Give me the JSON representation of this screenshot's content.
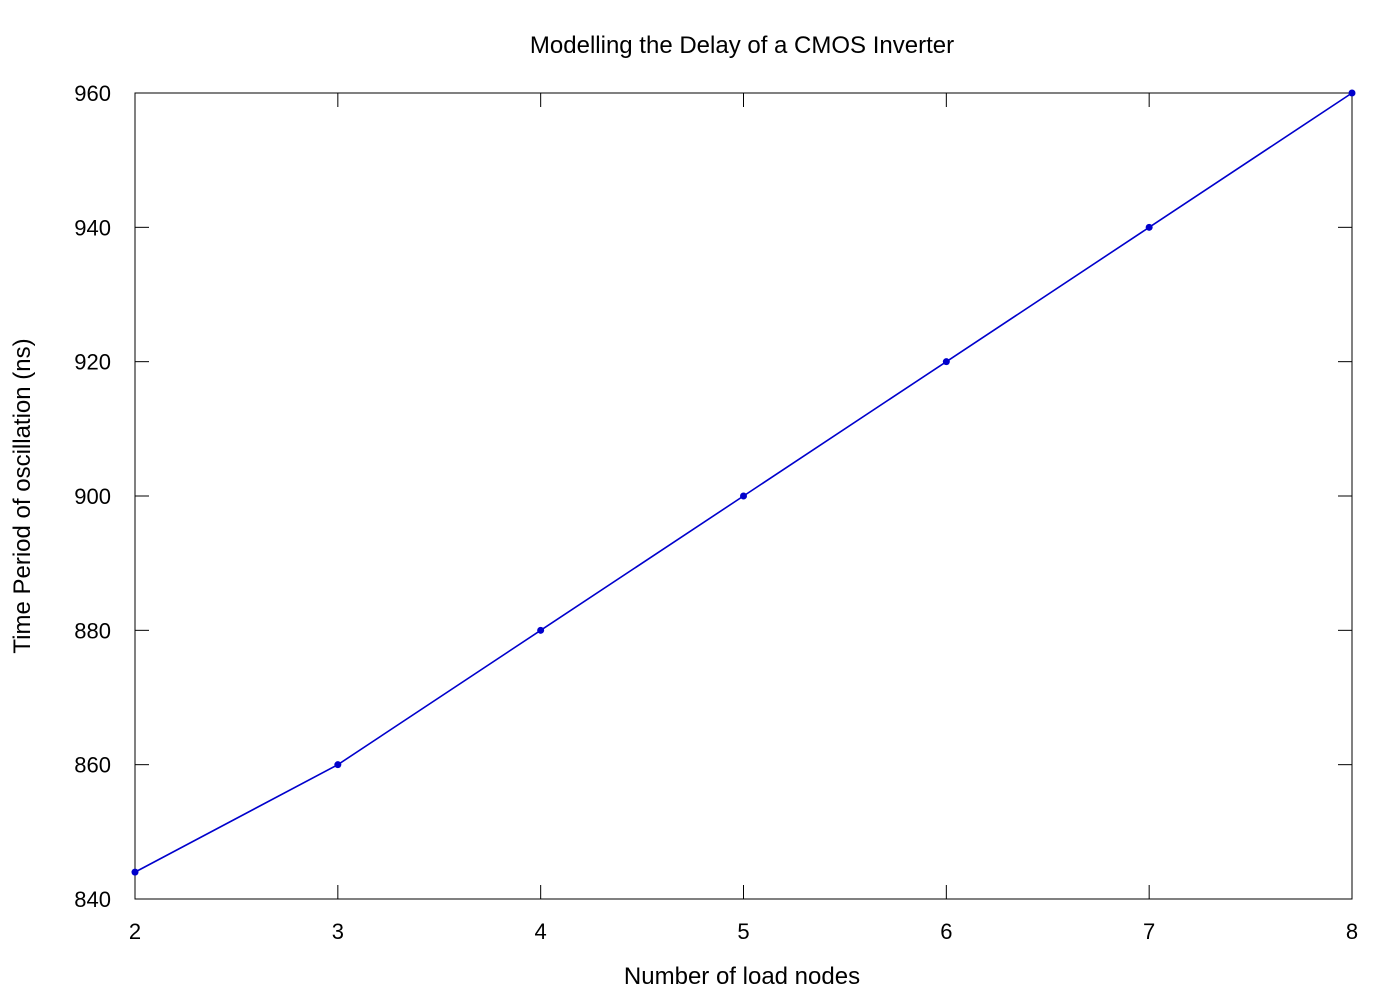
{
  "chart_data": {
    "type": "line",
    "title": "Modelling the Delay of a CMOS Inverter",
    "xlabel": "Number of load nodes",
    "ylabel": "Time Period of oscillation (ns)",
    "xlim": [
      2,
      8
    ],
    "ylim": [
      840,
      960
    ],
    "xticks": [
      "2",
      "3",
      "4",
      "5",
      "6",
      "7",
      "8"
    ],
    "yticks": [
      "840",
      "860",
      "880",
      "900",
      "920",
      "940",
      "960"
    ],
    "grid": false,
    "legend": "none",
    "series": [
      {
        "color": "#0000cc",
        "x": [
          2,
          3,
          4,
          5,
          6,
          7,
          8
        ],
        "y": [
          844,
          860,
          880,
          900,
          920,
          940,
          960
        ]
      }
    ]
  }
}
